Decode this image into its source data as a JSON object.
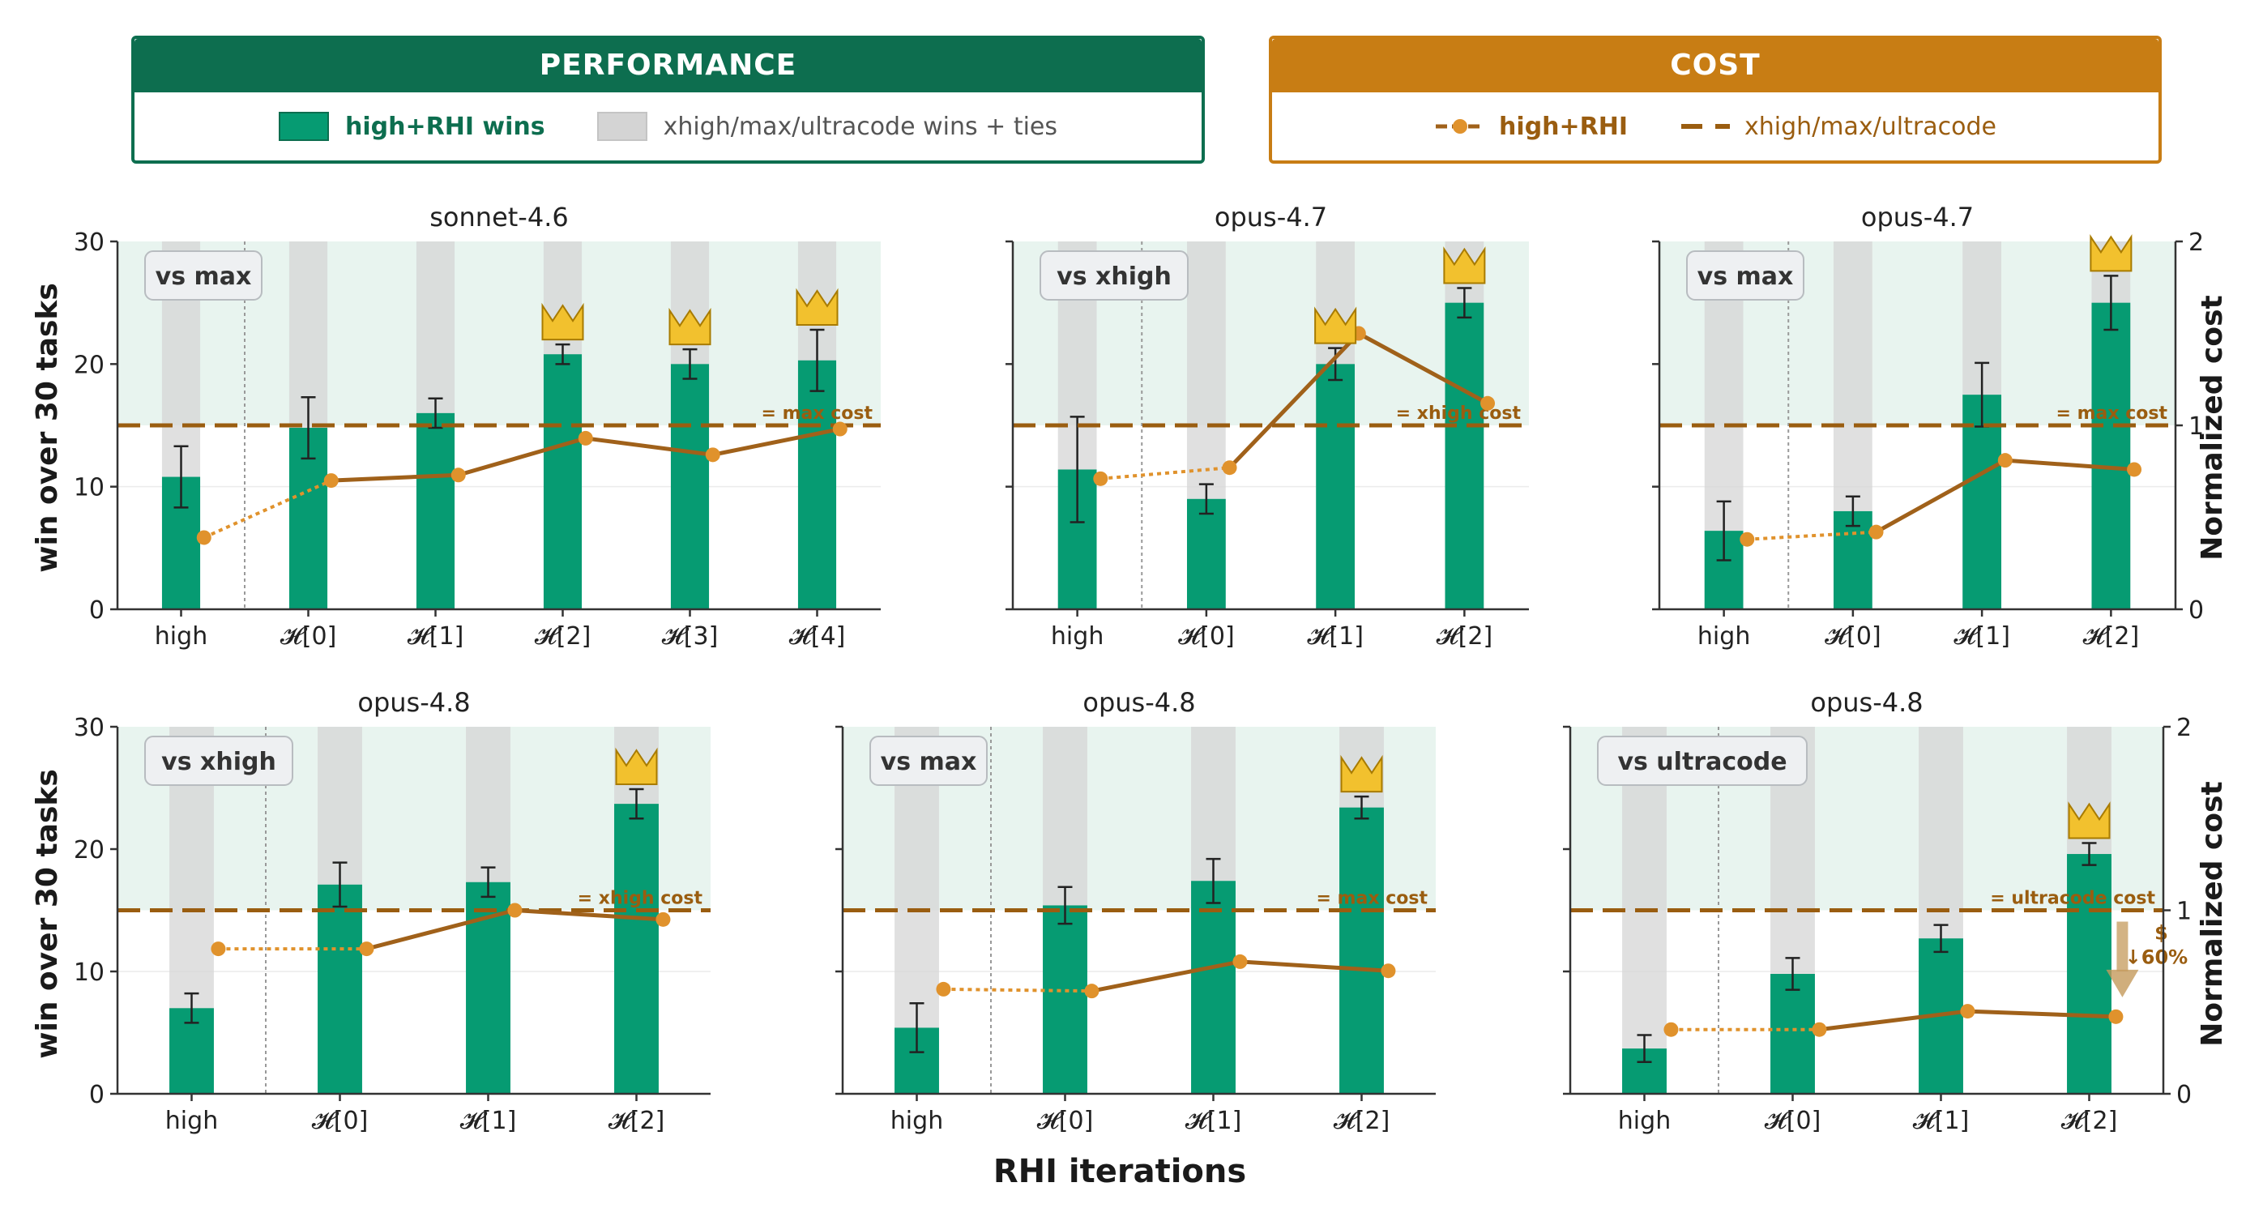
{
  "legend": {
    "performance": {
      "title": "PERFORMANCE",
      "color": "#0d6e4f",
      "items": [
        {
          "label": "high+RHI wins",
          "color": "#069b72"
        },
        {
          "label": "xhigh/max/ultracode wins + ties",
          "color": "#d4d4d4"
        }
      ]
    },
    "cost": {
      "title": "COST",
      "color": "#c87d14",
      "items": [
        {
          "label": "high+RHI",
          "color": "#a0611a",
          "marker_color": "#e0922c"
        },
        {
          "label": "xhigh/max/ultracode",
          "color": "#9a5d10"
        }
      ]
    }
  },
  "figure": {
    "xlabel": "RHI iterations",
    "ylabel_left": "win over 30 tasks",
    "ylabel_right": "Normalized cost",
    "colors": {
      "win_bar": "#069b72",
      "total_bar": "#d6d6d6",
      "shade": "#e8f4ef",
      "ref_line": "#9a5d10",
      "cost_line": "#a0611a",
      "cost_marker": "#e0922c",
      "crown": "#f2c12e",
      "axis": "#333333"
    }
  },
  "chart_data": [
    {
      "type": "bar",
      "title": "sonnet-4.6",
      "badge": "vs max",
      "categories": [
        "high",
        "𝓗[0]",
        "𝓗[1]",
        "𝓗[2]",
        "𝓗[3]",
        "𝓗[4]"
      ],
      "wins": [
        10.8,
        14.8,
        16.0,
        20.8,
        20.0,
        20.3
      ],
      "err": [
        2.5,
        2.5,
        1.2,
        0.8,
        1.2,
        2.5
      ],
      "total": 30,
      "ylim": [
        0,
        30
      ],
      "yticks": [
        0,
        10,
        20,
        30
      ],
      "cost": [
        0.39,
        0.7,
        0.73,
        0.93,
        0.84,
        0.98
      ],
      "cost_ylim": [
        0,
        2
      ],
      "cost_yticks": [
        0,
        1,
        2
      ],
      "ref_cost": 1.0,
      "ref_label": "= max cost",
      "crowns": [
        3,
        4,
        5
      ]
    },
    {
      "type": "bar",
      "title": "opus-4.7",
      "badge": "vs xhigh",
      "categories": [
        "high",
        "𝓗[0]",
        "𝓗[1]",
        "𝓗[2]"
      ],
      "wins": [
        11.4,
        9.0,
        20.0,
        25.0
      ],
      "err": [
        4.3,
        1.2,
        1.3,
        1.2
      ],
      "total": 30,
      "ylim": [
        0,
        30
      ],
      "yticks": [
        0,
        10,
        20,
        30
      ],
      "cost": [
        0.71,
        0.77,
        1.5,
        1.12
      ],
      "cost_ylim": [
        0,
        2
      ],
      "cost_yticks": [
        0,
        1,
        2
      ],
      "ref_cost": 1.0,
      "ref_label": "= xhigh cost",
      "crowns": [
        2,
        3
      ]
    },
    {
      "type": "bar",
      "title": "opus-4.7",
      "badge": "vs max",
      "categories": [
        "high",
        "𝓗[0]",
        "𝓗[1]",
        "𝓗[2]"
      ],
      "wins": [
        6.4,
        8.0,
        17.5,
        25.0
      ],
      "err": [
        2.4,
        1.2,
        2.6,
        2.2
      ],
      "total": 30,
      "ylim": [
        0,
        30
      ],
      "yticks": [
        0,
        10,
        20,
        30
      ],
      "cost": [
        0.38,
        0.42,
        0.81,
        0.76
      ],
      "cost_ylim": [
        0,
        2
      ],
      "cost_yticks": [
        0,
        1,
        2
      ],
      "ref_cost": 1.0,
      "ref_label": "= max cost",
      "crowns": [
        3
      ]
    },
    {
      "type": "bar",
      "title": "opus-4.8",
      "badge": "vs xhigh",
      "categories": [
        "high",
        "𝓗[0]",
        "𝓗[1]",
        "𝓗[2]"
      ],
      "wins": [
        7.0,
        17.1,
        17.3,
        23.7
      ],
      "err": [
        1.2,
        1.8,
        1.2,
        1.2
      ],
      "total": 30,
      "ylim": [
        0,
        30
      ],
      "yticks": [
        0,
        10,
        20,
        30
      ],
      "cost": [
        0.79,
        0.79,
        1.0,
        0.95
      ],
      "cost_ylim": [
        0,
        2
      ],
      "cost_yticks": [
        0,
        1,
        2
      ],
      "ref_cost": 1.0,
      "ref_label": "= xhigh cost",
      "crowns": [
        3
      ]
    },
    {
      "type": "bar",
      "title": "opus-4.8",
      "badge": "vs max",
      "categories": [
        "high",
        "𝓗[0]",
        "𝓗[1]",
        "𝓗[2]"
      ],
      "wins": [
        5.4,
        15.4,
        17.4,
        23.4
      ],
      "err": [
        2.0,
        1.5,
        1.8,
        0.9
      ],
      "total": 30,
      "ylim": [
        0,
        30
      ],
      "yticks": [
        0,
        10,
        20,
        30
      ],
      "cost": [
        0.57,
        0.56,
        0.72,
        0.67
      ],
      "cost_ylim": [
        0,
        2
      ],
      "cost_yticks": [
        0,
        1,
        2
      ],
      "ref_cost": 1.0,
      "ref_label": "= max cost",
      "crowns": [
        3
      ]
    },
    {
      "type": "bar",
      "title": "opus-4.8",
      "badge": "vs ultracode",
      "categories": [
        "high",
        "𝓗[0]",
        "𝓗[1]",
        "𝓗[2]"
      ],
      "wins": [
        3.7,
        9.8,
        12.7,
        19.6
      ],
      "err": [
        1.1,
        1.3,
        1.1,
        0.9
      ],
      "total": 30,
      "ylim": [
        0,
        30
      ],
      "yticks": [
        0,
        10,
        20,
        30
      ],
      "cost": [
        0.35,
        0.35,
        0.45,
        0.42
      ],
      "cost_ylim": [
        0,
        2
      ],
      "cost_yticks": [
        0,
        1,
        2
      ],
      "ref_cost": 1.0,
      "ref_label": "= ultracode cost",
      "crowns": [
        3
      ],
      "annotation": {
        "line1": "$",
        "line2": "↓60%"
      }
    }
  ]
}
